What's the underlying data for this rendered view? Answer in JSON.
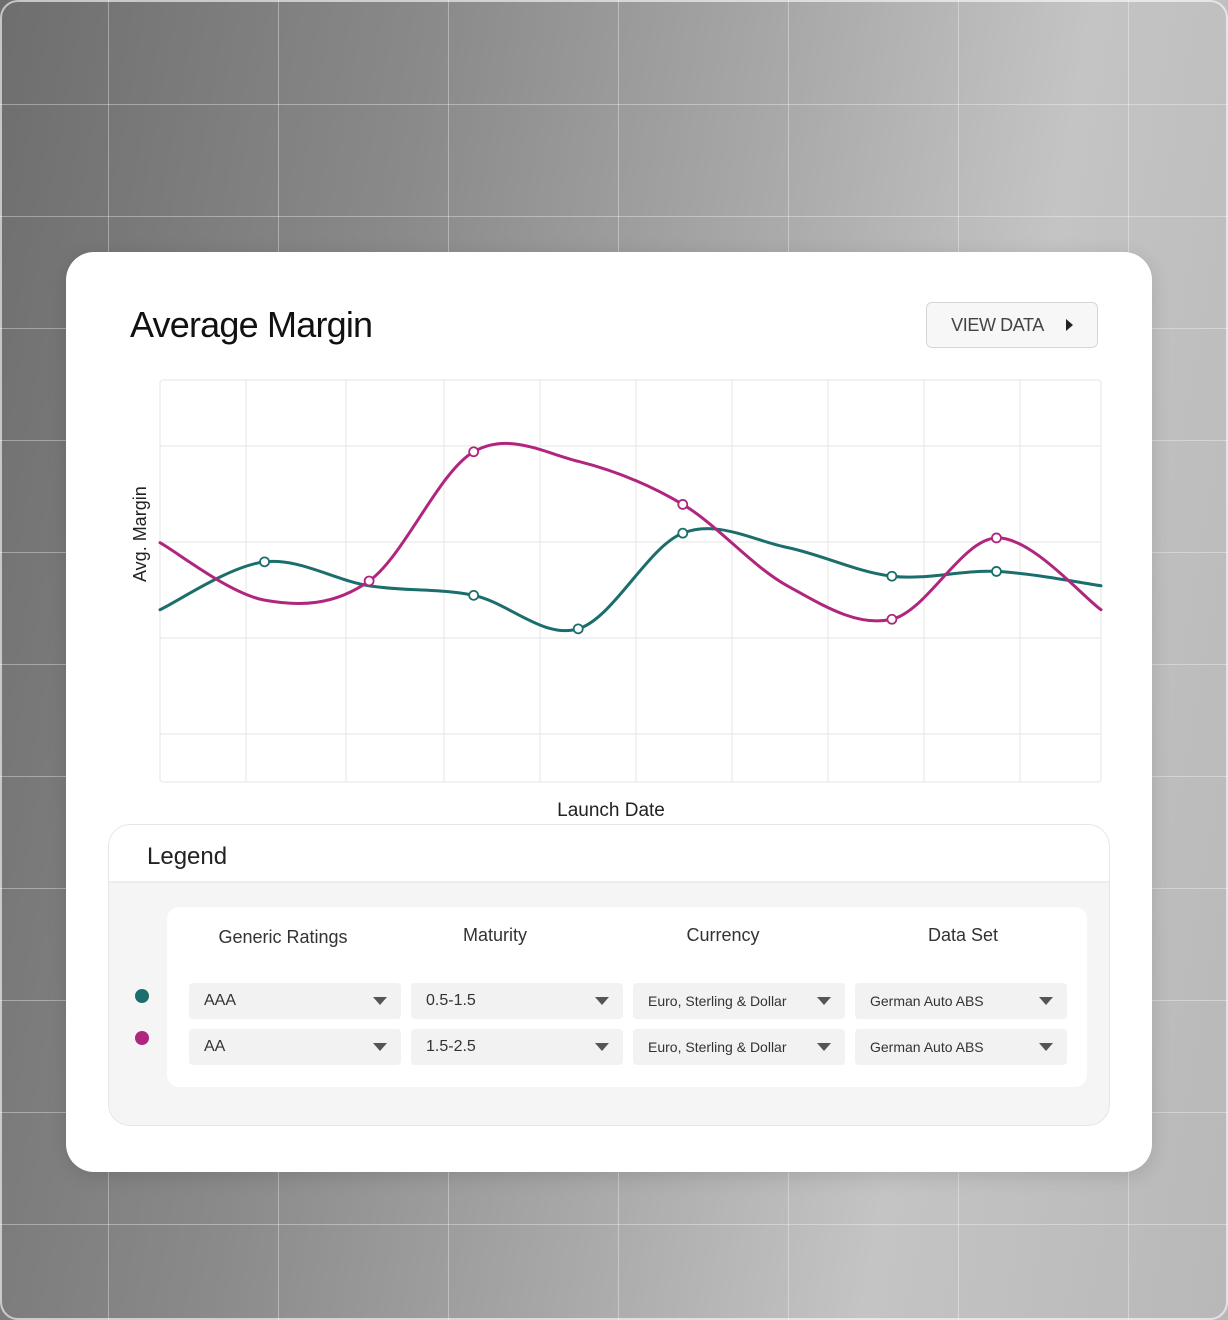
{
  "card": {
    "title": "Average Margin",
    "view_button": "VIEW DATA"
  },
  "chart_data": {
    "type": "line",
    "xlabel": "Launch Date",
    "ylabel": "Avg. Margin",
    "grid": true,
    "x": [
      0,
      1,
      2,
      3,
      4,
      5,
      6,
      7,
      8,
      9
    ],
    "series": [
      {
        "color": "#1b6e6b",
        "values": [
          3.3,
          3.8,
          3.55,
          3.45,
          3.1,
          4.1,
          3.95,
          3.65,
          3.7,
          3.55
        ],
        "marker_indices": [
          1,
          3,
          4,
          5,
          7,
          8
        ]
      },
      {
        "color": "#b0267f",
        "values": [
          4.0,
          3.4,
          3.6,
          4.95,
          4.85,
          4.4,
          3.55,
          3.2,
          4.05,
          3.3
        ],
        "marker_indices": [
          2,
          3,
          5,
          7,
          8
        ]
      }
    ],
    "ylim": [
      1.5,
      5.7
    ]
  },
  "legend": {
    "title": "Legend",
    "headers": [
      "Generic Ratings",
      "Maturity",
      "Currency",
      "Data Set"
    ],
    "rows": [
      {
        "color": "#1b6e6b",
        "rating": "AAA",
        "maturity": "0.5-1.5",
        "currency": "Euro, Sterling & Dollar",
        "dataset": "German Auto ABS"
      },
      {
        "color": "#b0267f",
        "rating": "AA",
        "maturity": "1.5-2.5",
        "currency": "Euro, Sterling & Dollar",
        "dataset": "German Auto ABS"
      }
    ]
  }
}
